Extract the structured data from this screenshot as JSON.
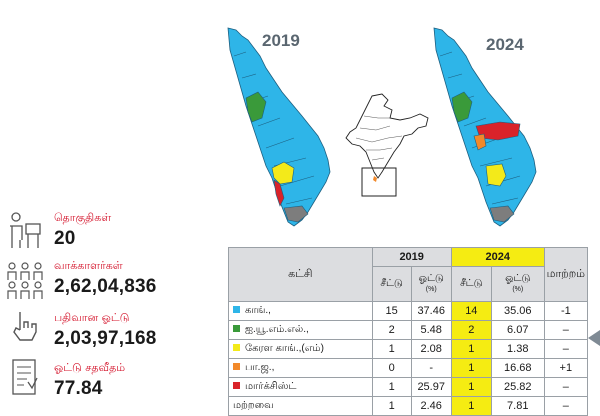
{
  "maps": {
    "year_2019": "2019",
    "year_2024": "2024"
  },
  "stats": [
    {
      "icon": "constituency-icon",
      "label": "தொகுதிகள்",
      "value": "20"
    },
    {
      "icon": "voters-icon",
      "label": "வாக்காளர்கள்",
      "value": "2,62,04,836"
    },
    {
      "icon": "vote-cast-icon",
      "label": "பதிவான ஓட்டு",
      "value": "2,03,97,168"
    },
    {
      "icon": "ballot-icon",
      "label": "ஓட்டு சதவீதம்",
      "value": "77.84"
    }
  ],
  "table": {
    "party_header": "கட்சி",
    "year_2019": "2019",
    "year_2024": "2024",
    "change_header": "மாற்றம்",
    "seats_label": "சீட்டு",
    "vote_label": "ஓட்டு",
    "percent_label": "(%)",
    "rows": [
      {
        "color": "#2eb5e8",
        "party": "காங்.,",
        "seats_2019": "15",
        "vote_2019": "37.46",
        "seats_2024": "14",
        "vote_2024": "35.06",
        "change": "-1"
      },
      {
        "color": "#3a9a3a",
        "party": "ஐ.யூ.எம்.எல்.,",
        "seats_2019": "2",
        "vote_2019": "5.48",
        "seats_2024": "2",
        "vote_2024": "6.07",
        "change": "–"
      },
      {
        "color": "#f3ea1a",
        "party": "கேரள காங்.,(எம்)",
        "seats_2019": "1",
        "vote_2019": "2.08",
        "seats_2024": "1",
        "vote_2024": "1.38",
        "change": "–"
      },
      {
        "color": "#f2892a",
        "party": "பா.ஜ.,",
        "seats_2019": "0",
        "vote_2019": "-",
        "seats_2024": "1",
        "vote_2024": "16.68",
        "change": "+1"
      },
      {
        "color": "#d9232a",
        "party": "மார்க்சிஸ்ட்",
        "seats_2019": "1",
        "vote_2019": "25.97",
        "seats_2024": "1",
        "vote_2024": "25.82",
        "change": "–"
      },
      {
        "color": "",
        "party": "மற்றவை",
        "seats_2019": "1",
        "vote_2019": "2.46",
        "seats_2024": "1",
        "vote_2024": "7.81",
        "change": "–"
      }
    ]
  },
  "colors": {
    "cong": "#2eb5e8",
    "iuml": "#3a9a3a",
    "kcm": "#f3ea1a",
    "bjp": "#f2892a",
    "cpm": "#d9232a",
    "others": "#7d7d7d",
    "accent_red": "#d4132a",
    "highlight": "#f5ec12"
  }
}
